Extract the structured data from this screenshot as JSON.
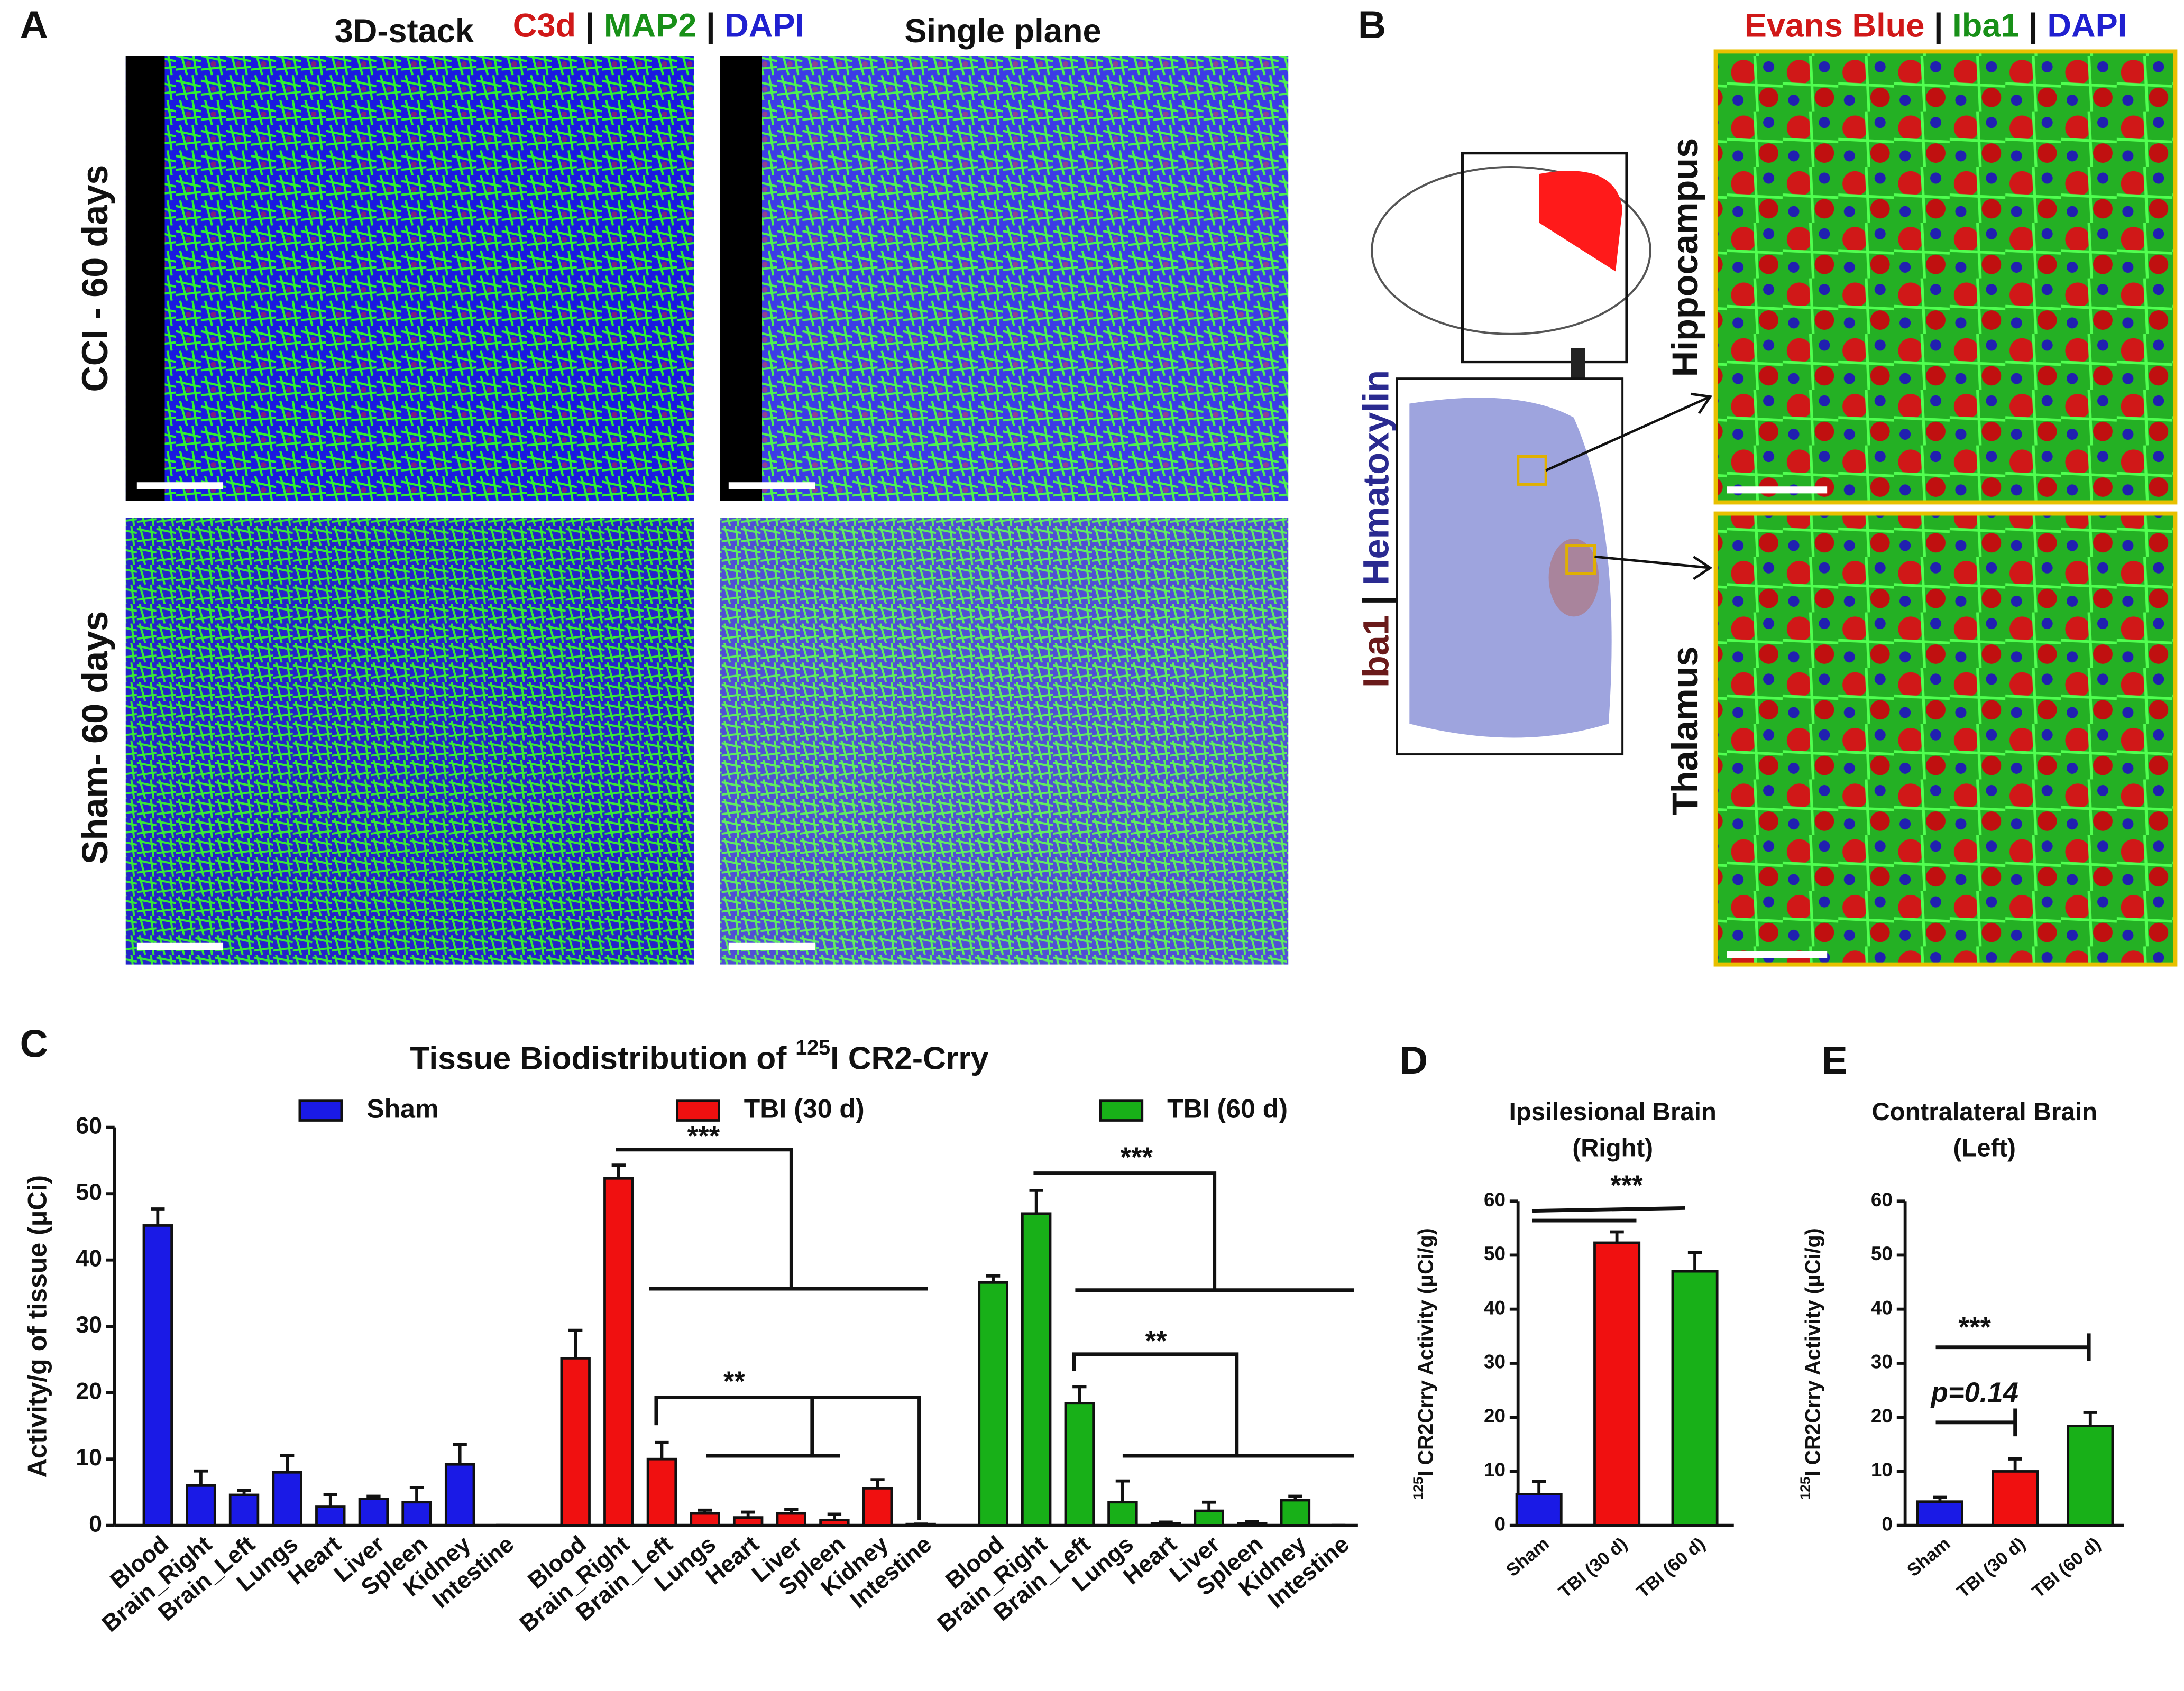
{
  "panel_labels": [
    "A",
    "B",
    "C",
    "D",
    "E"
  ],
  "panel_a": {
    "col_titles": [
      "3D-stack",
      "Single plane"
    ],
    "stain": [
      "C3d",
      " | ",
      "MAP2",
      " | ",
      "DAPI"
    ],
    "row_labels": [
      "CCI - 60 days",
      "Sham- 60 days"
    ]
  },
  "panel_b": {
    "stain": [
      "Evans Blue",
      " | ",
      "Iba1",
      " | ",
      "DAPI"
    ],
    "section_stain": [
      "Iba1",
      " | ",
      "Hematoxylin"
    ],
    "row_labels": [
      "Hippocampus",
      "Thalamus"
    ]
  },
  "chart_data": [
    {
      "type": "bar",
      "title": [
        "Tissue Biodistribution of ",
        "125",
        "I CR2-Crry"
      ],
      "y_label": "Activity/g of tissue (μCi)",
      "categories": [
        "Blood",
        "Brain_Right",
        "Brain_Left",
        "Lungs",
        "Heart",
        "Liver",
        "Spleen",
        "Kidney",
        "Intestine"
      ],
      "series": [
        {
          "name": "Sham",
          "color": "#1a1ae6",
          "values": [
            45.2,
            6,
            4.6,
            8,
            2.8,
            4,
            3.5,
            9.2,
            0
          ],
          "errors": [
            2.5,
            2.2,
            0.7,
            2.5,
            1.8,
            0.4,
            2.2,
            3,
            0
          ]
        },
        {
          "name": "TBI (30 d)",
          "color": "#f01010",
          "values": [
            25.2,
            52.3,
            10,
            1.8,
            1.2,
            1.8,
            0.8,
            5.6,
            0.2
          ],
          "errors": [
            4.2,
            2,
            2.5,
            0.5,
            0.8,
            0.6,
            0.9,
            1.3,
            0
          ]
        },
        {
          "name": "TBI (60 d)",
          "color": "#18b018",
          "values": [
            36.6,
            47,
            18.4,
            3.5,
            0.3,
            2.2,
            0.3,
            3.8,
            0
          ],
          "errors": [
            1,
            3.5,
            2.5,
            3.2,
            0.2,
            1.3,
            0.3,
            0.6,
            0
          ]
        }
      ],
      "annotations": [
        "***",
        "**",
        "***",
        "**"
      ],
      "ylim": [
        0,
        60
      ],
      "yticks": [
        0,
        10,
        20,
        30,
        40,
        50,
        60
      ]
    },
    {
      "type": "bar",
      "title": [
        "Ipsilesional Brain",
        "(Right)"
      ],
      "y_label": [
        "125",
        "I CR2Crry Activity (μCi/g)"
      ],
      "categories": [
        "Sham",
        "TBI (30 d)",
        "TBI (60 d)"
      ],
      "values": [
        5.8,
        52.3,
        47
      ],
      "errors": [
        2.3,
        2,
        3.5
      ],
      "colors": [
        "#1a1ae6",
        "#f01010",
        "#18b018"
      ],
      "annotations": [
        "***"
      ],
      "ylim": [
        0,
        60
      ],
      "yticks": [
        0,
        10,
        20,
        30,
        40,
        50,
        60
      ]
    },
    {
      "type": "bar",
      "title": [
        "Contralateral Brain",
        "(Left)"
      ],
      "y_label": [
        "125",
        "I CR2Crry Activity (μCi/g)"
      ],
      "categories": [
        "Sham",
        "TBI (30 d)",
        "TBI (60 d)"
      ],
      "values": [
        4.4,
        10,
        18.4
      ],
      "errors": [
        0.8,
        2.3,
        2.5
      ],
      "colors": [
        "#1a1ae6",
        "#f01010",
        "#18b018"
      ],
      "annotations": [
        "***",
        "p=0.14"
      ],
      "ylim": [
        0,
        60
      ],
      "yticks": [
        0,
        10,
        20,
        30,
        40,
        50,
        60
      ]
    }
  ]
}
